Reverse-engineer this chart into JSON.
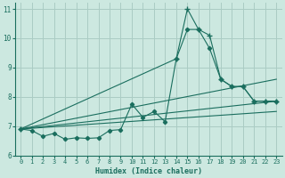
{
  "xlabel": "Humidex (Indice chaleur)",
  "xlim": [
    -0.5,
    23.5
  ],
  "ylim": [
    6,
    11.2
  ],
  "yticks": [
    6,
    7,
    8,
    9,
    10,
    11
  ],
  "xticks": [
    0,
    1,
    2,
    3,
    4,
    5,
    6,
    7,
    8,
    9,
    10,
    11,
    12,
    13,
    14,
    15,
    16,
    17,
    18,
    19,
    20,
    21,
    22,
    23
  ],
  "bg_color": "#cce8e0",
  "grid_color": "#aaccc4",
  "line_color": "#1a6e5e",
  "main_line": {
    "x": [
      0,
      1,
      2,
      3,
      4,
      5,
      6,
      7,
      8,
      9,
      10,
      11,
      12,
      13,
      14,
      15,
      16,
      17,
      18,
      19,
      20,
      21,
      22,
      23
    ],
    "y": [
      6.9,
      6.85,
      6.65,
      6.75,
      6.55,
      6.6,
      6.58,
      6.6,
      6.85,
      6.88,
      7.75,
      7.3,
      7.5,
      7.15,
      9.3,
      10.3,
      10.3,
      9.65,
      8.6,
      8.35,
      8.35,
      7.85,
      7.85,
      7.85
    ]
  },
  "peak_line": {
    "x": [
      0,
      14,
      15,
      16,
      17,
      18,
      19,
      20,
      21,
      22,
      23
    ],
    "y": [
      6.9,
      9.3,
      11.0,
      10.3,
      10.1,
      8.6,
      8.35,
      8.35,
      7.85,
      7.85,
      7.85
    ]
  },
  "straight_lines": [
    {
      "x0": 0,
      "y0": 6.9,
      "x1": 23,
      "y1": 8.6
    },
    {
      "x0": 0,
      "y0": 6.9,
      "x1": 23,
      "y1": 7.85
    },
    {
      "x0": 0,
      "y0": 6.9,
      "x1": 23,
      "y1": 7.5
    }
  ]
}
